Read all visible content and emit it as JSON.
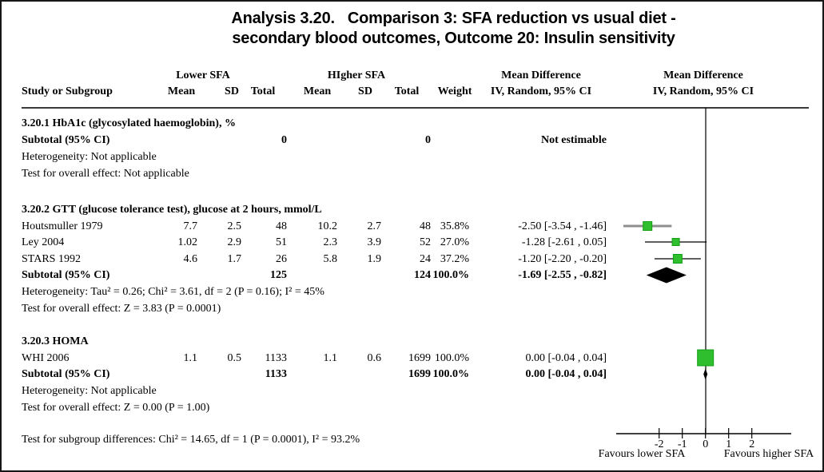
{
  "title": {
    "line1": "Analysis 3.20.   Comparison 3: SFA reduction vs usual diet -",
    "line2": "secondary blood outcomes, Outcome 20: Insulin sensitivity"
  },
  "header": {
    "group_left": "Lower SFA",
    "group_right": "HIgher SFA",
    "study": "Study or Subgroup",
    "mean": "Mean",
    "sd": "SD",
    "total": "Total",
    "weight": "Weight",
    "md": "Mean Difference",
    "method": "IV, Random, 95% CI"
  },
  "sections": [
    {
      "heading": "3.20.1 HbA1c (glycosylated haemoglobin), %",
      "studies": [],
      "subtotal": {
        "label": "Subtotal (95% CI)",
        "total_lower": "0",
        "total_higher": "0",
        "weight": "",
        "estimate": "Not estimable"
      },
      "heterogeneity": "Heterogeneity: Not applicable",
      "overall": "Test for overall effect: Not applicable"
    },
    {
      "heading": "3.20.2 GTT (glucose tolerance test), glucose at 2 hours, mmol/L",
      "studies": [
        {
          "name": "Houtsmuller 1979",
          "mean_l": "7.7",
          "sd_l": "2.5",
          "total_l": "48",
          "mean_h": "10.2",
          "sd_h": "2.7",
          "total_h": "48",
          "weight": "35.8%",
          "estimate": "-2.50 [-3.54 , -1.46]"
        },
        {
          "name": "Ley 2004",
          "mean_l": "1.02",
          "sd_l": "2.9",
          "total_l": "51",
          "mean_h": "2.3",
          "sd_h": "3.9",
          "total_h": "52",
          "weight": "27.0%",
          "estimate": "-1.28 [-2.61 , 0.05]"
        },
        {
          "name": "STARS 1992",
          "mean_l": "4.6",
          "sd_l": "1.7",
          "total_l": "26",
          "mean_h": "5.8",
          "sd_h": "1.9",
          "total_h": "24",
          "weight": "37.2%",
          "estimate": "-1.20 [-2.20 , -0.20]"
        }
      ],
      "subtotal": {
        "label": "Subtotal (95% CI)",
        "total_lower": "125",
        "total_higher": "124",
        "weight": "100.0%",
        "estimate": "-1.69 [-2.55 , -0.82]"
      },
      "heterogeneity": "Heterogeneity: Tau² = 0.26; Chi² = 3.61, df = 2 (P = 0.16); I² = 45%",
      "overall": "Test for overall effect: Z = 3.83 (P = 0.0001)"
    },
    {
      "heading": "3.20.3 HOMA",
      "studies": [
        {
          "name": "WHI 2006",
          "mean_l": "1.1",
          "sd_l": "0.5",
          "total_l": "1133",
          "mean_h": "1.1",
          "sd_h": "0.6",
          "total_h": "1699",
          "weight": "100.0%",
          "estimate": "0.00 [-0.04 , 0.04]"
        }
      ],
      "subtotal": {
        "label": "Subtotal (95% CI)",
        "total_lower": "1133",
        "total_higher": "1699",
        "weight": "100.0%",
        "estimate": "0.00 [-0.04 , 0.04]"
      },
      "heterogeneity": "Heterogeneity: Not applicable",
      "overall": "Test for overall effect: Z = 0.00 (P = 1.00)"
    }
  ],
  "footer": {
    "subgroup_test": "Test for subgroup differences: Chi² = 14.65, df = 1 (P = 0.0001), I² = 93.2%"
  },
  "axis": {
    "favours_left": "Favours lower SFA",
    "favours_right": "Favours higher SFA"
  },
  "colors": {
    "square": "#2ebe2e",
    "square_border": "#14a014",
    "diamond": "#000000",
    "ci_line": "#000000",
    "ci_line_gray": "#8f8f8f"
  },
  "chart_data": {
    "type": "forest",
    "title": "Analysis 3.20. Comparison 3: SFA reduction vs usual diet - secondary blood outcomes, Outcome 20: Insulin sensitivity",
    "effect_measure": "Mean Difference",
    "method": "IV, Random, 95% CI",
    "x_ticks": [
      -2,
      -1,
      0,
      1,
      2
    ],
    "x_axis_range": [
      -3.85,
      3.7
    ],
    "favours_left": "Favours lower SFA",
    "favours_right": "Favours higher SFA",
    "groups": [
      {
        "label": "3.20.1 HbA1c (glycosylated haemoglobin), %",
        "studies": [],
        "subtotal": null,
        "subtotal_note": "Not estimable"
      },
      {
        "label": "3.20.2 GTT (glucose tolerance test), glucose at 2 hours, mmol/L",
        "studies": [
          {
            "name": "Houtsmuller 1979",
            "md": -2.5,
            "ci_low": -3.54,
            "ci_high": -1.46,
            "weight_pct": 35.8
          },
          {
            "name": "Ley 2004",
            "md": -1.28,
            "ci_low": -2.61,
            "ci_high": 0.05,
            "weight_pct": 27.0
          },
          {
            "name": "STARS 1992",
            "md": -1.2,
            "ci_low": -2.2,
            "ci_high": -0.2,
            "weight_pct": 37.2
          }
        ],
        "subtotal": {
          "md": -1.69,
          "ci_low": -2.55,
          "ci_high": -0.82,
          "weight_pct": 100.0
        }
      },
      {
        "label": "3.20.3 HOMA",
        "studies": [
          {
            "name": "WHI 2006",
            "md": 0.0,
            "ci_low": -0.04,
            "ci_high": 0.04,
            "weight_pct": 100.0
          }
        ],
        "subtotal": {
          "md": 0.0,
          "ci_low": -0.04,
          "ci_high": 0.04,
          "weight_pct": 100.0
        }
      }
    ]
  }
}
